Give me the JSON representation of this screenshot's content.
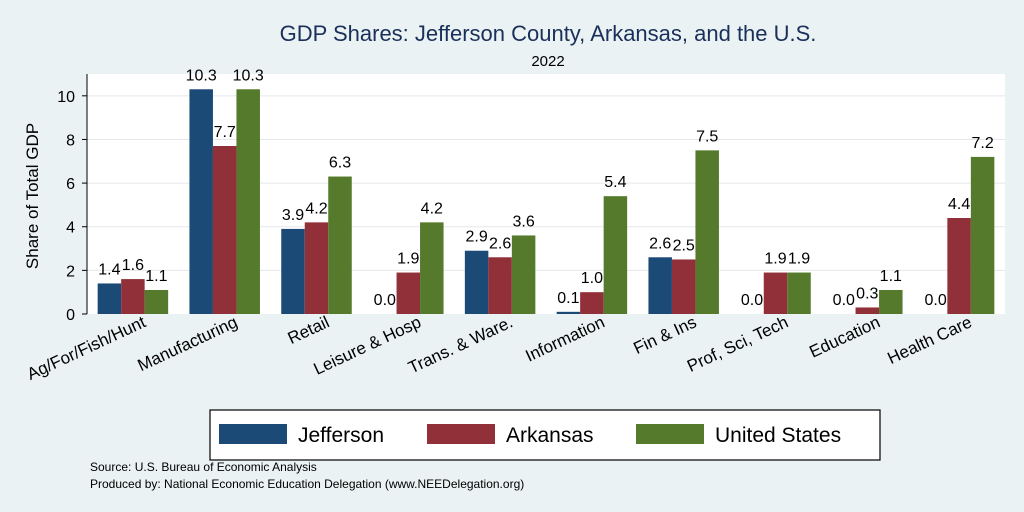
{
  "chart_data": {
    "type": "bar",
    "title": "GDP Shares: Jefferson County, Arkansas, and the U.S.",
    "subtitle": "2022",
    "ylabel": "Share of Total GDP",
    "xlabel": "",
    "ylim": [
      0,
      11
    ],
    "yticks": [
      0,
      2,
      4,
      6,
      8,
      10
    ],
    "grid": true,
    "legend_position": "bottom",
    "categories": [
      "Ag/For/Fish/Hunt",
      "Manufacturing",
      "Retail",
      "Leisure & Hosp",
      "Trans. & Ware.",
      "Information",
      "Fin & Ins",
      "Prof, Sci, Tech",
      "Education",
      "Health Care"
    ],
    "series": [
      {
        "name": "Jefferson",
        "color": "#1c4a76",
        "values": [
          1.4,
          10.3,
          3.9,
          0.0,
          2.9,
          0.1,
          2.6,
          0.0,
          0.0,
          0.0
        ]
      },
      {
        "name": "Arkansas",
        "color": "#913038",
        "values": [
          1.6,
          7.7,
          4.2,
          1.9,
          2.6,
          1.0,
          2.5,
          1.9,
          0.3,
          4.4
        ]
      },
      {
        "name": "United States",
        "color": "#557a2c",
        "values": [
          1.1,
          10.3,
          6.3,
          4.2,
          3.6,
          5.4,
          7.5,
          1.9,
          1.1,
          7.2
        ]
      }
    ]
  },
  "footnotes": {
    "source": "Source: U.S. Bureau of Economic Analysis",
    "produced": "Produced by: National Economic Education Delegation (www.NEEDelegation.org)"
  }
}
